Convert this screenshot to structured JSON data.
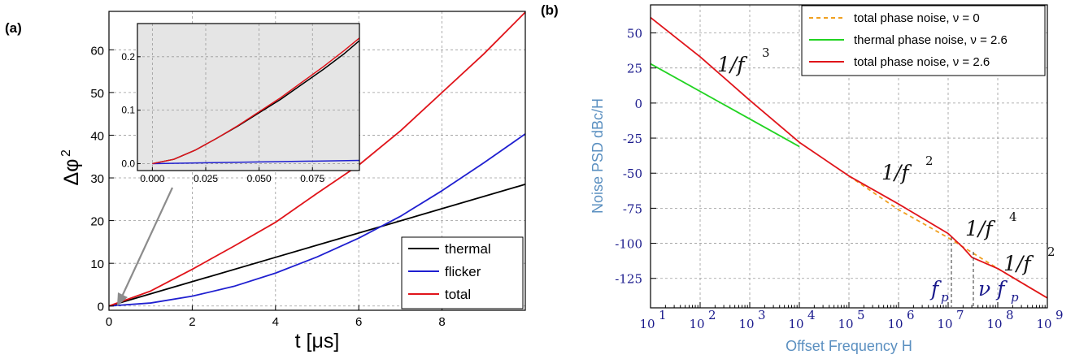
{
  "panel_a": {
    "label": "(a)",
    "legend": [
      {
        "name": "thermal",
        "color": "#000000"
      },
      {
        "name": "flicker",
        "color": "#1f1fd0"
      },
      {
        "name": "total",
        "color": "#e0141a"
      }
    ]
  },
  "panel_b": {
    "label": "(b)",
    "annotations": {
      "f3": "1/f",
      "f3_exp": "3",
      "f2a": "1/f",
      "f2a_exp": "2",
      "f4": "1/f",
      "f4_exp": "4",
      "f2b": "1/f",
      "f2b_exp": "2",
      "fp": "f",
      "fp_sub": "p",
      "nufp": "ν f",
      "nufp_sub": "p"
    },
    "legend": [
      {
        "name": "total phase noise, ν = 0",
        "color": "#f0a020",
        "dashed": true
      },
      {
        "name": "thermal phase noise, ν = 2.6",
        "color": "#22d322",
        "dashed": false
      },
      {
        "name": "total phase noise, ν = 2.6",
        "color": "#e0141a",
        "dashed": false
      }
    ]
  },
  "chart_data": [
    {
      "type": "line",
      "id": "main_a",
      "xlabel": "t [μs]",
      "ylabel": "Δφ",
      "ylabel_sup": "2",
      "xlim": [
        0,
        10
      ],
      "ylim": [
        -1,
        69
      ],
      "xticks": [
        0,
        2,
        4,
        6,
        8
      ],
      "yticks": [
        0,
        10,
        20,
        30,
        40,
        50,
        60
      ],
      "grid": true,
      "legend_position": "bottom-right",
      "series": [
        {
          "name": "thermal",
          "x": [
            0,
            2,
            4,
            6,
            8,
            10
          ],
          "y": [
            0,
            5.7,
            11.4,
            17.1,
            22.8,
            28.5
          ]
        },
        {
          "name": "flicker",
          "x": [
            0,
            1,
            2,
            3,
            4,
            5,
            6,
            7,
            8,
            9,
            10
          ],
          "y": [
            0,
            0.7,
            2.3,
            4.6,
            7.7,
            11.5,
            15.9,
            21,
            27,
            33.5,
            40.3
          ]
        },
        {
          "name": "total",
          "x": [
            0,
            1,
            2,
            3,
            4,
            5,
            6,
            7,
            8,
            9,
            10
          ],
          "y": [
            0,
            3.5,
            8.6,
            14.0,
            19.6,
            26.4,
            33.0,
            41.0,
            50.0,
            59.0,
            68.8
          ]
        }
      ]
    },
    {
      "type": "line",
      "id": "inset_a",
      "xlim": [
        -0.007,
        0.097
      ],
      "ylim": [
        -0.013,
        0.262
      ],
      "xticks": [
        0.0,
        0.025,
        0.05,
        0.075
      ],
      "xtick_labels": [
        "0.000",
        "0.025",
        "0.050",
        "0.075"
      ],
      "yticks": [
        0.0,
        0.1,
        0.2
      ],
      "ytick_labels": [
        "0.0",
        "0.1",
        "0.2"
      ],
      "grid": true,
      "background": "#e5e5e5",
      "series": [
        {
          "name": "thermal",
          "x": [
            0,
            0.01,
            0.02,
            0.03,
            0.04,
            0.05,
            0.06,
            0.07,
            0.08,
            0.09,
            0.097
          ],
          "y": [
            0,
            0.008,
            0.025,
            0.047,
            0.07,
            0.095,
            0.12,
            0.148,
            0.176,
            0.206,
            0.23
          ]
        },
        {
          "name": "flicker",
          "x": [
            0,
            0.097
          ],
          "y": [
            0,
            0.006
          ]
        },
        {
          "name": "total",
          "x": [
            0,
            0.01,
            0.02,
            0.03,
            0.04,
            0.05,
            0.06,
            0.07,
            0.08,
            0.09,
            0.097
          ],
          "y": [
            0,
            0.008,
            0.025,
            0.047,
            0.071,
            0.097,
            0.123,
            0.152,
            0.181,
            0.212,
            0.235
          ]
        }
      ]
    },
    {
      "type": "line",
      "id": "panel_b",
      "xlabel": "Offset Frequency  H",
      "ylabel": "Noise PSD  dBc/H",
      "xscale": "log",
      "xlim": [
        10,
        1000000000
      ],
      "ylim": [
        -146,
        70
      ],
      "xtick_base": "10",
      "xtick_exps": [
        "1",
        "2",
        "3",
        "4",
        "5",
        "6",
        "7",
        "8",
        "9"
      ],
      "yticks": [
        50,
        25,
        0,
        -25,
        -50,
        -75,
        -100,
        -125
      ],
      "grid": true,
      "legend_position": "top-right",
      "series": [
        {
          "name": "total phase noise, ν = 0",
          "x": [
            100000,
            1000000,
            10000000,
            100000000,
            1000000000
          ],
          "y": [
            -52,
            -76,
            -96,
            -118,
            -139
          ]
        },
        {
          "name": "thermal phase noise, ν = 2.6",
          "x": [
            10,
            10000
          ],
          "y": [
            28,
            -31
          ]
        },
        {
          "name": "total phase noise, ν = 2.6",
          "x": [
            10,
            100,
            1000,
            10000,
            100000,
            1000000,
            3000000,
            10000000,
            20000000,
            30000000,
            100000000,
            1000000000
          ],
          "y": [
            61,
            33,
            2,
            -28,
            -52,
            -72,
            -82,
            -93,
            -103,
            -110,
            -118,
            -139
          ]
        }
      ]
    }
  ]
}
